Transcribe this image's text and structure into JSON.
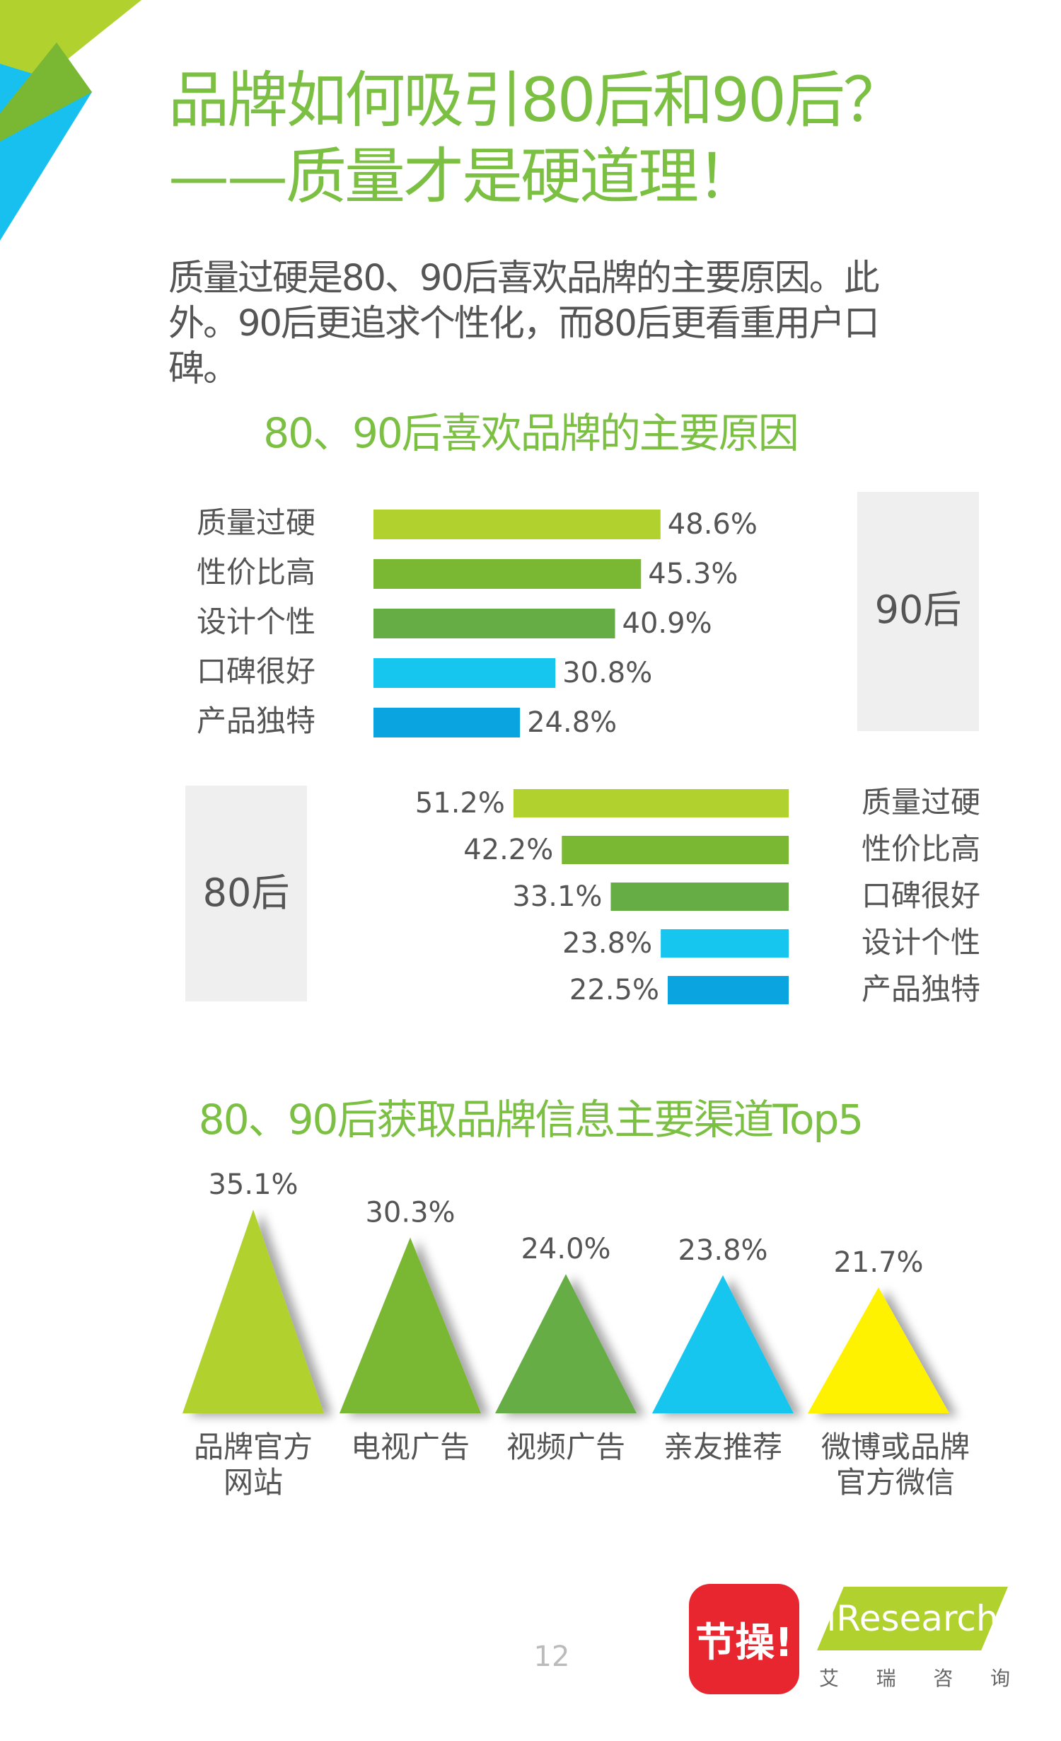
{
  "title": {
    "line1": "品牌如何吸引80后和90后？",
    "line2": "——质量才是硬道理！"
  },
  "intro": "质量过硬是80、90后喜欢品牌的主要原因。此外。90后更追求个性化，而80后更看重用户口碑。",
  "page_number": "12",
  "logos": {
    "app_text": "节操!",
    "research_text": "iResearch",
    "research_sub": [
      "艾",
      "瑞",
      "咨",
      "询"
    ]
  },
  "colors": {
    "title_green": "#7cc043",
    "lime": "#b1d12f",
    "green": "#7ab733",
    "mid_green": "#66ad45",
    "cyan": "#17c6ef",
    "blue": "#0aa4e0",
    "yellow": "#fff200",
    "label_panel": "#efefef"
  },
  "chart_data": [
    {
      "type": "bar",
      "title": "80、90后喜欢品牌的主要原因",
      "group_label": "90后",
      "categories": [
        "质量过硬",
        "性价比高",
        "设计个性",
        "口碑很好",
        "产品独特"
      ],
      "values": [
        48.6,
        45.3,
        40.9,
        30.8,
        24.8
      ],
      "value_labels": [
        "48.6%",
        "45.3%",
        "40.9%",
        "30.8%",
        "24.8%"
      ],
      "bar_colors": [
        "#b1d12f",
        "#7ab733",
        "#66ad45",
        "#17c6ef",
        "#0aa4e0"
      ],
      "orientation": "horizontal",
      "direction": "left-to-right"
    },
    {
      "type": "bar",
      "group_label": "80后",
      "categories": [
        "质量过硬",
        "性价比高",
        "口碑很好",
        "设计个性",
        "产品独特"
      ],
      "values": [
        51.2,
        42.2,
        33.1,
        23.8,
        22.5
      ],
      "value_labels": [
        "51.2%",
        "42.2%",
        "33.1%",
        "23.8%",
        "22.5%"
      ],
      "bar_colors": [
        "#b1d12f",
        "#7ab733",
        "#66ad45",
        "#17c6ef",
        "#0aa4e0"
      ],
      "orientation": "horizontal",
      "direction": "right-to-left"
    },
    {
      "type": "bar",
      "style": "triangle",
      "title": "80、90后获取品牌信息主要渠道Top5",
      "categories": [
        [
          "品牌官方",
          "网站"
        ],
        [
          "电视广告"
        ],
        [
          "视频广告"
        ],
        [
          "亲友推荐"
        ],
        [
          "微博或品牌",
          "官方微信"
        ]
      ],
      "values": [
        35.1,
        30.3,
        24.0,
        23.8,
        21.7
      ],
      "value_labels": [
        "35.1%",
        "30.3%",
        "24.0%",
        "23.8%",
        "21.7%"
      ],
      "bar_colors": [
        "#b1d12f",
        "#7ab733",
        "#66ad45",
        "#17c6ef",
        "#fff200"
      ]
    }
  ]
}
